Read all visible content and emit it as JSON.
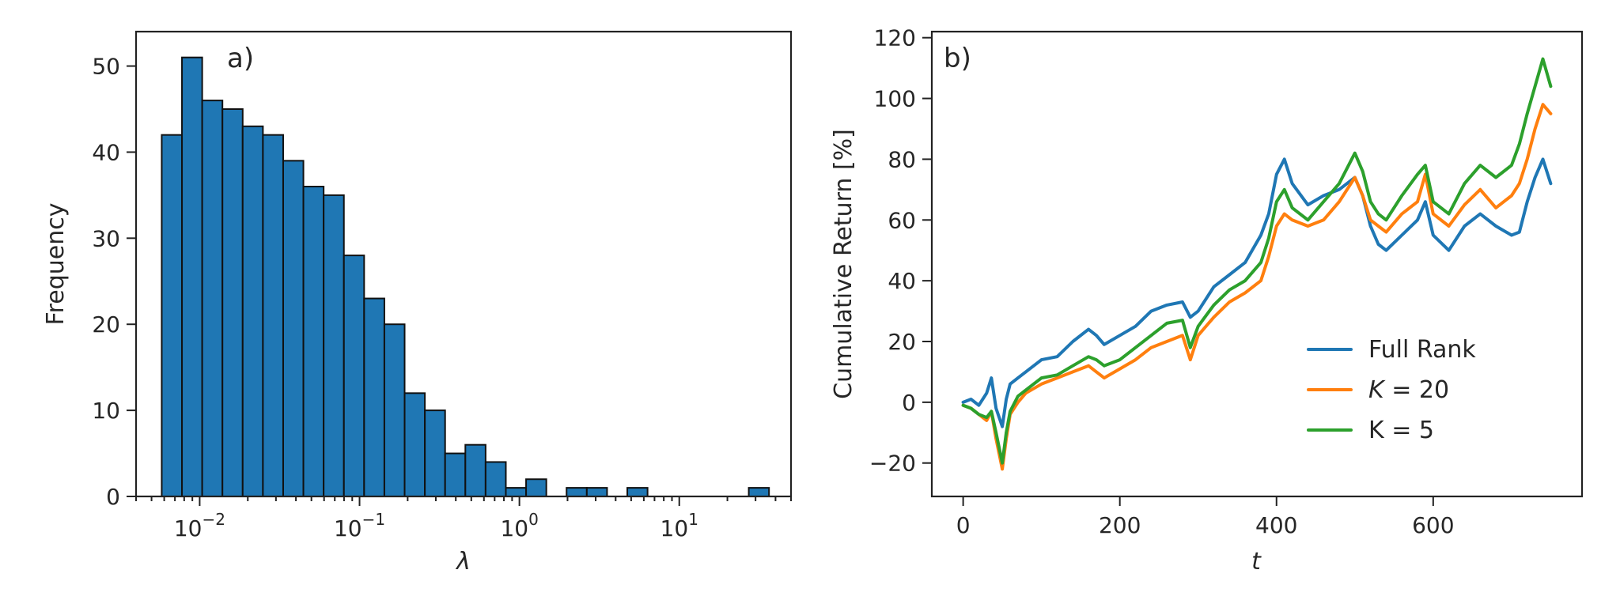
{
  "chart_data": [
    {
      "type": "bar",
      "panel_label": "a)",
      "xlabel": "λ",
      "ylabel": "Frequency",
      "xscale": "log",
      "xlim": [
        0.004,
        50
      ],
      "ylim": [
        0,
        54
      ],
      "x_ticks": [
        {
          "value": 0.01,
          "base": "10",
          "exp": "−2"
        },
        {
          "value": 0.1,
          "base": "10",
          "exp": "−1"
        },
        {
          "value": 1,
          "base": "10",
          "exp": "0"
        },
        {
          "value": 10,
          "base": "10",
          "exp": "1"
        }
      ],
      "y_ticks": [
        0,
        10,
        20,
        30,
        40,
        50
      ],
      "bin_edges": [
        0.00579,
        0.00775,
        0.01037,
        0.01388,
        0.01858,
        0.02487,
        0.03329,
        0.04455,
        0.05963,
        0.07982,
        0.10684,
        0.14301,
        0.19142,
        0.25623,
        0.34297,
        0.45908,
        0.61449,
        0.82252,
        1.10097,
        1.47369,
        1.97258,
        2.64036,
        3.53421,
        4.73066,
        6.33216,
        8.47582,
        11.34519,
        15.18594,
        20.3269,
        27.20826,
        36.4192
      ],
      "values": [
        42,
        51,
        46,
        45,
        43,
        42,
        39,
        36,
        35,
        28,
        23,
        20,
        12,
        10,
        5,
        6,
        4,
        1,
        2,
        0,
        1,
        1,
        0,
        1,
        0,
        0,
        0,
        0,
        0,
        1
      ],
      "grid": false
    },
    {
      "type": "line",
      "panel_label": "b)",
      "xlabel": "t",
      "ylabel": "Cumulative Return [%]",
      "xlim": [
        -40,
        790
      ],
      "ylim": [
        -31,
        122
      ],
      "x_ticks": [
        0,
        200,
        400,
        600
      ],
      "y_ticks": [
        -20,
        0,
        20,
        40,
        60,
        80,
        100,
        120
      ],
      "x": [
        0,
        10,
        20,
        30,
        36,
        42,
        50,
        55,
        60,
        70,
        80,
        100,
        120,
        140,
        160,
        170,
        180,
        200,
        220,
        240,
        260,
        280,
        290,
        300,
        320,
        340,
        360,
        380,
        390,
        400,
        410,
        420,
        440,
        460,
        480,
        500,
        510,
        520,
        530,
        540,
        560,
        580,
        590,
        600,
        620,
        640,
        660,
        680,
        700,
        710,
        720,
        730,
        740,
        750
      ],
      "series": [
        {
          "name": "Full Rank",
          "color": "#1f77b4",
          "values": [
            0,
            1,
            -1,
            3,
            8,
            -2,
            -8,
            1,
            6,
            8,
            10,
            14,
            15,
            20,
            24,
            22,
            19,
            22,
            25,
            30,
            32,
            33,
            28,
            30,
            38,
            42,
            46,
            55,
            62,
            75,
            80,
            72,
            65,
            68,
            70,
            74,
            68,
            58,
            52,
            50,
            55,
            60,
            66,
            55,
            50,
            58,
            62,
            58,
            55,
            56,
            66,
            74,
            80,
            72
          ]
        },
        {
          "name": "K = 20",
          "label_parts": [
            "K",
            " = 20"
          ],
          "color": "#ff7f0e",
          "values": [
            -1,
            -2,
            -4,
            -6,
            -3,
            -12,
            -22,
            -12,
            -4,
            0,
            3,
            6,
            8,
            10,
            12,
            10,
            8,
            11,
            14,
            18,
            20,
            22,
            14,
            22,
            28,
            33,
            36,
            40,
            48,
            58,
            62,
            60,
            58,
            60,
            66,
            74,
            68,
            60,
            58,
            56,
            62,
            66,
            75,
            62,
            58,
            65,
            70,
            64,
            68,
            72,
            80,
            90,
            98,
            95
          ]
        },
        {
          "name": "K = 5",
          "color": "#2ca02c",
          "values": [
            -1,
            -2,
            -4,
            -5,
            -3,
            -10,
            -20,
            -10,
            -3,
            2,
            4,
            8,
            9,
            12,
            15,
            14,
            12,
            14,
            18,
            22,
            26,
            27,
            18,
            25,
            32,
            37,
            40,
            46,
            54,
            66,
            70,
            64,
            60,
            66,
            72,
            82,
            76,
            66,
            62,
            60,
            68,
            75,
            78,
            66,
            62,
            72,
            78,
            74,
            78,
            85,
            95,
            104,
            113,
            104
          ]
        }
      ],
      "legend_location": "lower-right",
      "grid": false
    }
  ]
}
